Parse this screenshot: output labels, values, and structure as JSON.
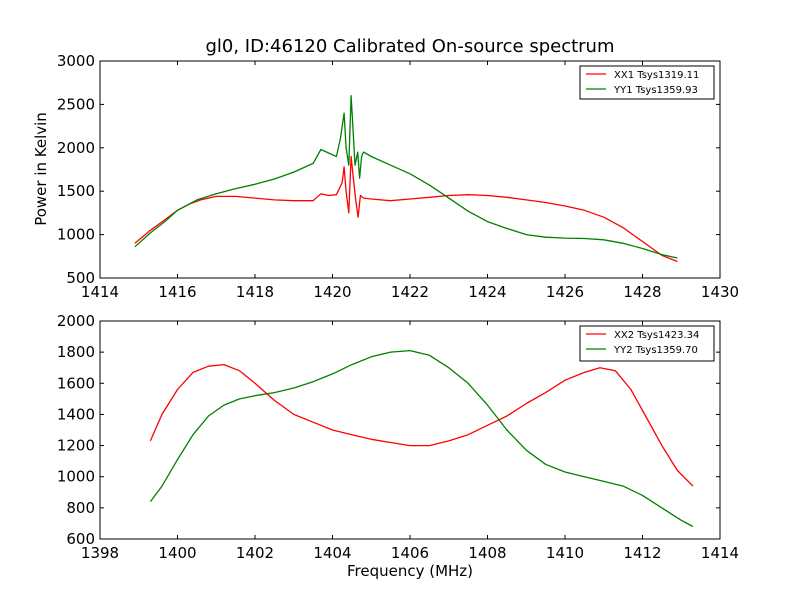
{
  "page": {
    "title": "gl0, ID:46120 Calibrated On-source spectrum",
    "xlabel": "Frequency (MHz)",
    "ylabel": "Power in Kelvin"
  },
  "chart_data": [
    {
      "type": "line",
      "xlim": [
        1414,
        1430
      ],
      "ylim": [
        500,
        3000
      ],
      "xticks": [
        1414,
        1416,
        1418,
        1420,
        1422,
        1424,
        1426,
        1428,
        1430
      ],
      "yticks": [
        500,
        1000,
        1500,
        2000,
        2500,
        3000
      ],
      "grid": false,
      "legend": "top-right",
      "series": [
        {
          "name": "XX1 Tsys1319.11",
          "color": "#ff0000",
          "x": [
            1414.9,
            1415.3,
            1415.7,
            1416.0,
            1416.3,
            1416.6,
            1417.0,
            1417.5,
            1418.0,
            1418.5,
            1419.0,
            1419.5,
            1419.7,
            1419.9,
            1420.1,
            1420.25,
            1420.3,
            1420.35,
            1420.42,
            1420.48,
            1420.55,
            1420.6,
            1420.66,
            1420.72,
            1420.8,
            1421.0,
            1421.5,
            1422.0,
            1422.5,
            1423.0,
            1423.5,
            1424.0,
            1424.5,
            1425.0,
            1425.5,
            1426.0,
            1426.5,
            1427.0,
            1427.5,
            1428.0,
            1428.5,
            1428.9
          ],
          "values": [
            900,
            1050,
            1180,
            1280,
            1350,
            1400,
            1440,
            1440,
            1420,
            1400,
            1390,
            1390,
            1470,
            1450,
            1460,
            1600,
            1780,
            1500,
            1250,
            1900,
            1600,
            1400,
            1200,
            1450,
            1420,
            1410,
            1390,
            1410,
            1430,
            1450,
            1460,
            1450,
            1430,
            1400,
            1370,
            1330,
            1280,
            1200,
            1080,
            920,
            760,
            690
          ]
        },
        {
          "name": "YY1 Tsys1359.93",
          "color": "#008000",
          "x": [
            1414.9,
            1415.3,
            1415.7,
            1416.0,
            1416.5,
            1417.0,
            1417.5,
            1418.0,
            1418.5,
            1419.0,
            1419.5,
            1419.7,
            1419.9,
            1420.1,
            1420.2,
            1420.3,
            1420.35,
            1420.42,
            1420.48,
            1420.52,
            1420.58,
            1420.65,
            1420.7,
            1420.75,
            1420.8,
            1421.0,
            1421.5,
            1422.0,
            1422.5,
            1423.0,
            1423.5,
            1424.0,
            1424.5,
            1425.0,
            1425.5,
            1426.0,
            1426.5,
            1427.0,
            1427.5,
            1428.0,
            1428.5,
            1428.9
          ],
          "values": [
            860,
            1020,
            1160,
            1280,
            1400,
            1470,
            1530,
            1580,
            1640,
            1720,
            1820,
            1980,
            1940,
            1900,
            2100,
            2400,
            2000,
            1800,
            2600,
            2300,
            1800,
            1950,
            1650,
            1900,
            1950,
            1900,
            1800,
            1700,
            1570,
            1420,
            1270,
            1150,
            1070,
            1000,
            970,
            960,
            955,
            940,
            900,
            840,
            770,
            730
          ]
        }
      ]
    },
    {
      "type": "line",
      "xlim": [
        1398,
        1414
      ],
      "ylim": [
        600,
        2000
      ],
      "xticks": [
        1398,
        1400,
        1402,
        1404,
        1406,
        1408,
        1410,
        1412,
        1414
      ],
      "yticks": [
        600,
        800,
        1000,
        1200,
        1400,
        1600,
        1800,
        2000
      ],
      "grid": false,
      "legend": "top-right",
      "series": [
        {
          "name": "XX2 Tsys1423.34",
          "color": "#ff0000",
          "x": [
            1399.3,
            1399.6,
            1400.0,
            1400.4,
            1400.8,
            1401.2,
            1401.6,
            1402.0,
            1402.5,
            1403.0,
            1403.5,
            1404.0,
            1404.5,
            1405.0,
            1405.5,
            1406.0,
            1406.5,
            1407.0,
            1407.5,
            1408.0,
            1408.5,
            1409.0,
            1409.5,
            1410.0,
            1410.5,
            1410.9,
            1411.3,
            1411.7,
            1412.1,
            1412.5,
            1412.9,
            1413.3
          ],
          "values": [
            1230,
            1400,
            1560,
            1670,
            1710,
            1720,
            1680,
            1600,
            1490,
            1400,
            1350,
            1300,
            1270,
            1240,
            1220,
            1200,
            1200,
            1230,
            1270,
            1330,
            1390,
            1470,
            1540,
            1620,
            1670,
            1700,
            1680,
            1560,
            1380,
            1200,
            1040,
            940
          ]
        },
        {
          "name": "YY2 Tsys1359.70",
          "color": "#008000",
          "x": [
            1399.3,
            1399.6,
            1400.0,
            1400.4,
            1400.8,
            1401.2,
            1401.6,
            1402.0,
            1402.5,
            1403.0,
            1403.5,
            1404.0,
            1404.5,
            1405.0,
            1405.5,
            1406.0,
            1406.5,
            1407.0,
            1407.5,
            1408.0,
            1408.5,
            1409.0,
            1409.5,
            1410.0,
            1410.5,
            1411.0,
            1411.5,
            1412.0,
            1412.5,
            1413.0,
            1413.3
          ],
          "values": [
            840,
            940,
            1110,
            1270,
            1390,
            1460,
            1500,
            1520,
            1540,
            1570,
            1610,
            1660,
            1720,
            1770,
            1800,
            1810,
            1780,
            1700,
            1600,
            1460,
            1300,
            1170,
            1080,
            1030,
            1000,
            970,
            940,
            880,
            800,
            720,
            680
          ]
        }
      ]
    }
  ]
}
